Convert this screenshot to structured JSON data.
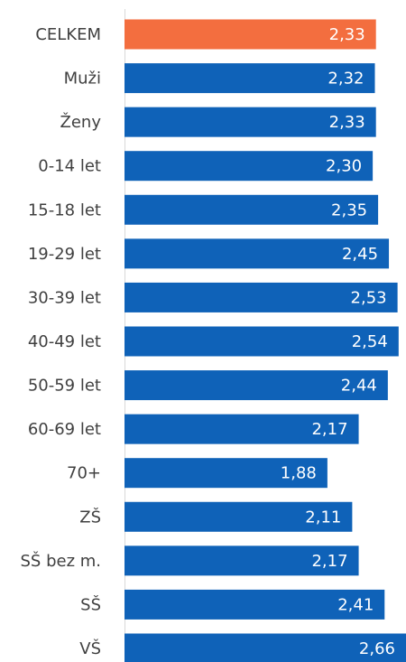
{
  "chart_data": {
    "type": "barh",
    "categories": [
      "CELKEM",
      "Muži",
      "Ženy",
      "0-14 let",
      "15-18 let",
      "19-29 let",
      "30-39 let",
      "40-49 let",
      "50-59 let",
      "60-69 let",
      "70+",
      "ZŠ",
      "SŠ bez m.",
      "SŠ",
      "VŠ"
    ],
    "values": [
      2.33,
      2.32,
      2.33,
      2.3,
      2.35,
      2.45,
      2.53,
      2.54,
      2.44,
      2.17,
      1.88,
      2.11,
      2.17,
      2.41,
      2.66
    ],
    "value_labels": [
      "2,33",
      "2,32",
      "2,33",
      "2,30",
      "2,35",
      "2,45",
      "2,53",
      "2,54",
      "2,44",
      "2,17",
      "1,88",
      "2,11",
      "2,17",
      "2,41",
      "2,66"
    ],
    "colors": [
      "#f36e3f",
      "#0f62b8",
      "#0f62b8",
      "#0f62b8",
      "#0f62b8",
      "#0f62b8",
      "#0f62b8",
      "#0f62b8",
      "#0f62b8",
      "#0f62b8",
      "#0f62b8",
      "#0f62b8",
      "#0f62b8",
      "#0f62b8",
      "#0f62b8"
    ],
    "xlim": [
      0,
      2.6
    ]
  }
}
